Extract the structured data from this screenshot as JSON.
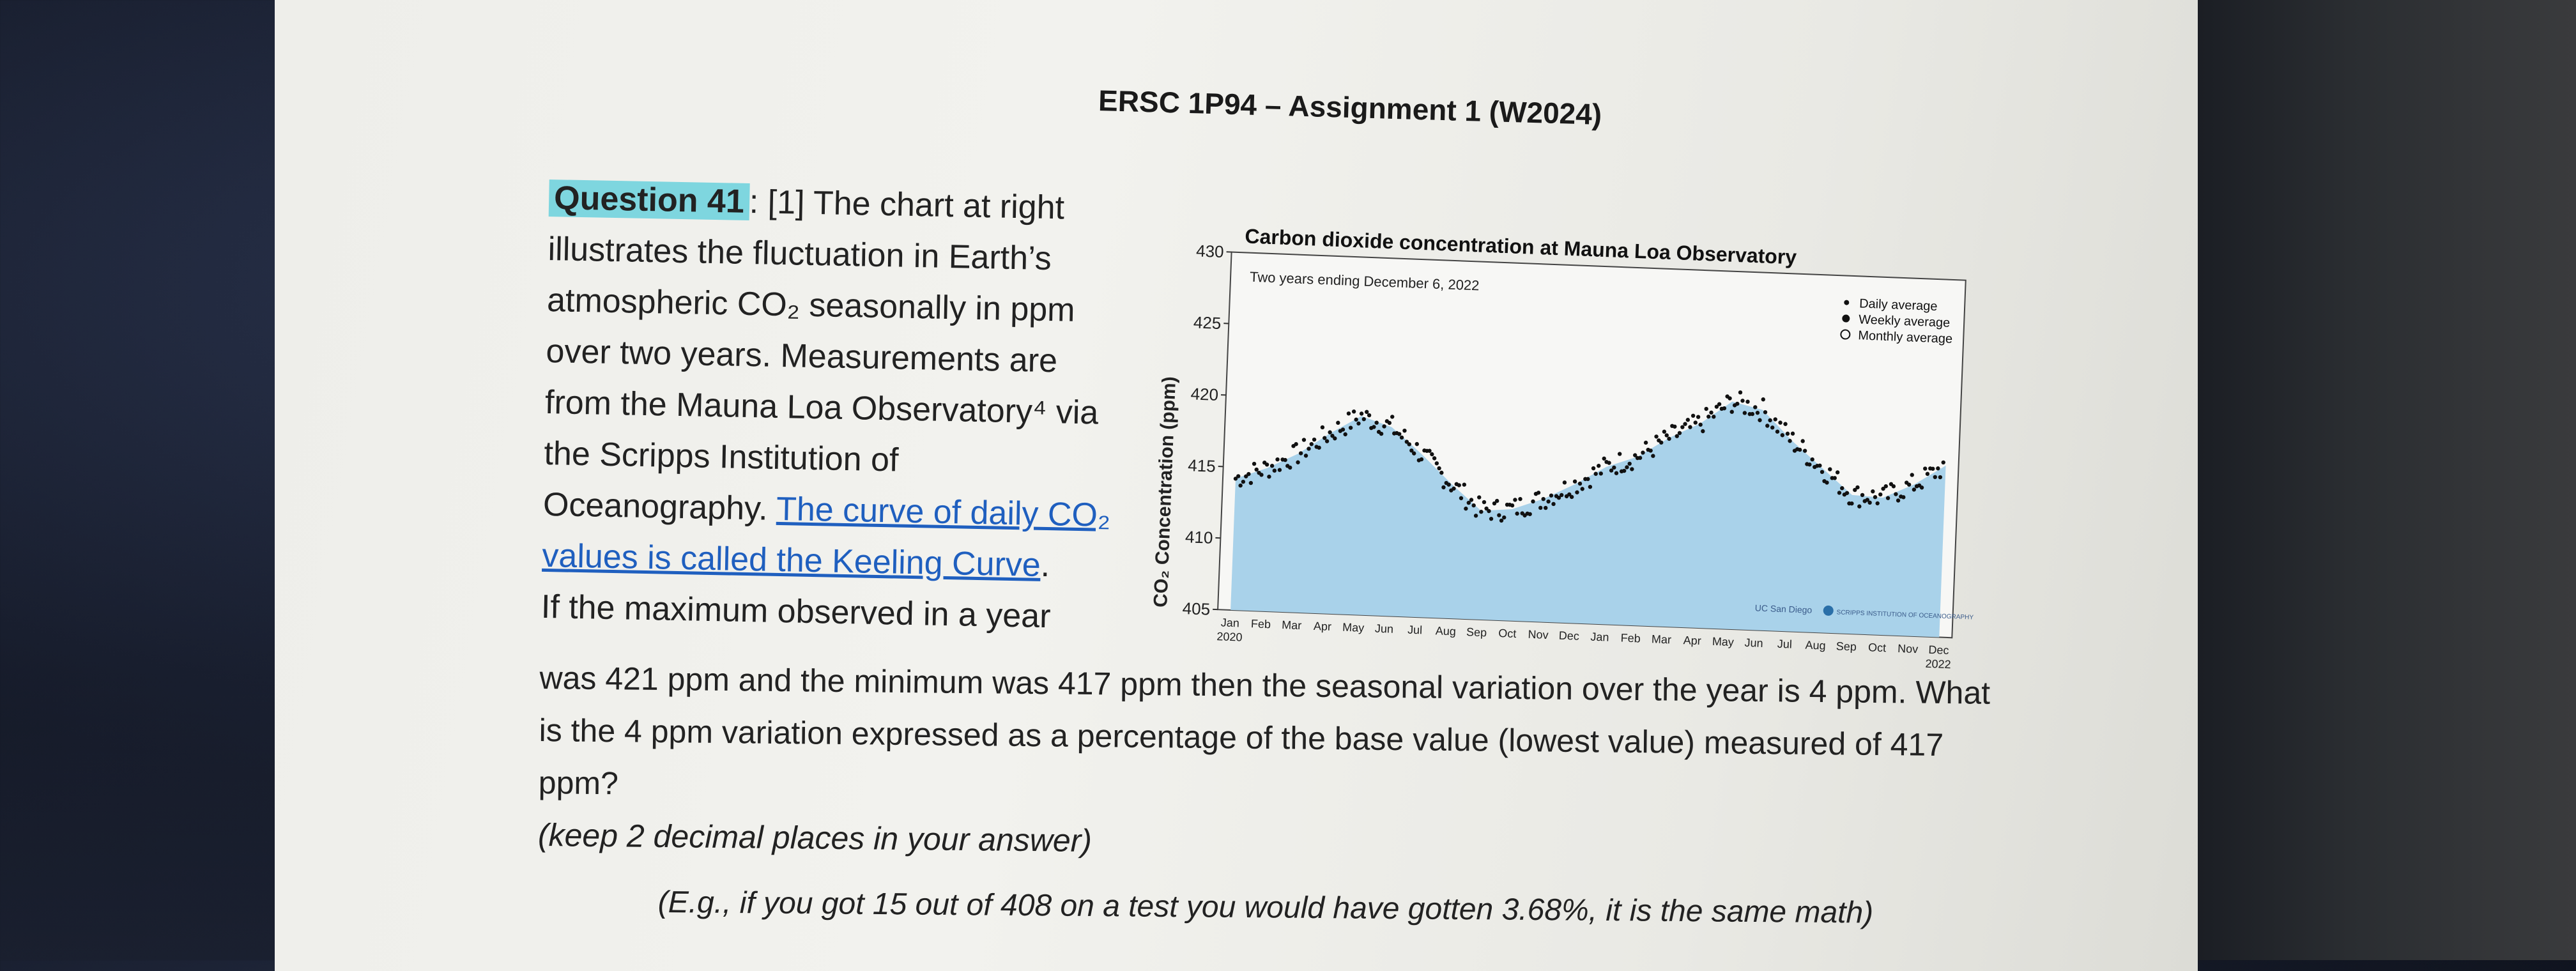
{
  "document": {
    "title": "ERSC 1P94 – Assignment 1 (W2024)",
    "question_label": "Question 41",
    "question_intro": ": [1] The chart at right illustrates the fluctuation in Earth’s atmospheric CO₂ seasonally in ppm over two years. Measurements are from the Mauna Loa Observatory⁴ via the Scripps Institution of Oceanography. ",
    "link_text": "The curve of daily CO₂ values is called the Keeling Curve",
    "link_end": ".",
    "line_if": "If the maximum observed in a year",
    "line_body": "was 421 ppm and the minimum was 417 ppm then the seasonal variation over the year is 4 ppm. What is the 4 ppm variation expressed as a percentage of the base value (lowest value) measured of 417 ppm?",
    "instruction": "(keep 2 decimal places in your answer)",
    "example": "(E.g., if you got 15 out of 408 on a test you would have gotten 3.68%, it is the same math)"
  },
  "chart_data": {
    "type": "scatter",
    "title": "Carbon dioxide concentration at Mauna Loa Observatory",
    "subtitle": "Two years ending December 6, 2022",
    "ylabel": "CO₂ Concentration (ppm)",
    "ylim": [
      405,
      430
    ],
    "yticks": [
      405,
      410,
      415,
      420,
      425,
      430
    ],
    "x_month_labels": [
      "Jan",
      "Feb",
      "Mar",
      "Apr",
      "May",
      "Jun",
      "Jul",
      "Aug",
      "Sep",
      "Oct",
      "Nov",
      "Dec",
      "Jan",
      "Feb",
      "Mar",
      "Apr",
      "May",
      "Jun",
      "Jul",
      "Aug",
      "Sep",
      "Oct",
      "Nov",
      "Dec"
    ],
    "x_year_labels": [
      "2020",
      "2022"
    ],
    "legend": [
      "Daily average",
      "Weekly average",
      "Monthly average"
    ],
    "legend_position": "top-right",
    "logos": [
      "UC San Diego",
      "SCRIPPS INSTITUTION OF OCEANOGRAPHY"
    ],
    "monthly_average": [
      414.2,
      415.0,
      416.1,
      417.6,
      418.9,
      418.2,
      416.4,
      414.4,
      412.6,
      412.8,
      413.6,
      414.7,
      416.0,
      416.8,
      418.2,
      419.3,
      420.9,
      420.4,
      418.3,
      416.5,
      414.7,
      414.6,
      415.6,
      417.0
    ],
    "colors": {
      "fill": "#a9d2ea",
      "points": "#111111"
    }
  }
}
